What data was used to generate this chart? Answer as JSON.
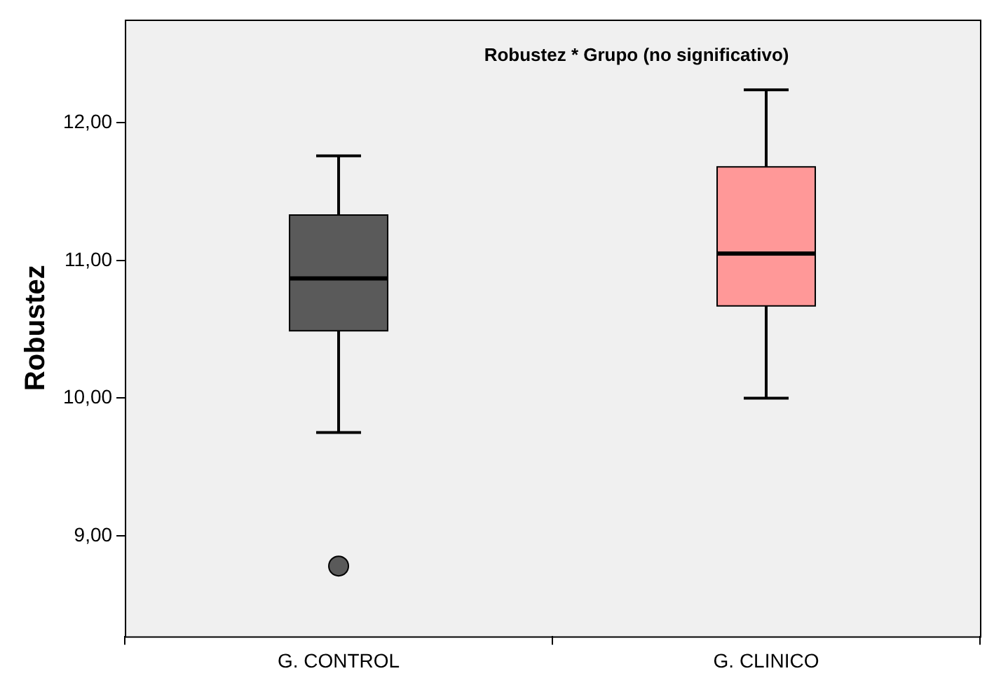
{
  "chart_data": {
    "type": "box",
    "title": "Robustez * Grupo (no significativo)",
    "ylabel": "Robustez",
    "categories": [
      "G. CONTROL",
      "G. CLINICO"
    ],
    "colors": [
      "#5a5a5a",
      "#ff9898"
    ],
    "boxes": [
      {
        "low": 9.75,
        "q1": 10.49,
        "median": 10.87,
        "q3": 11.33,
        "high": 11.76,
        "outliers": [
          8.78
        ]
      },
      {
        "low": 10.0,
        "q1": 10.67,
        "median": 11.05,
        "q3": 11.68,
        "high": 12.24
      }
    ],
    "ylim": [
      8.27,
      12.75
    ],
    "yticks": [
      {
        "value": 9,
        "label": "9,00"
      },
      {
        "value": 10,
        "label": "10,00"
      },
      {
        "value": 11,
        "label": "11,00"
      },
      {
        "value": 12,
        "label": "12,00"
      }
    ],
    "grid": false,
    "legend": false
  }
}
